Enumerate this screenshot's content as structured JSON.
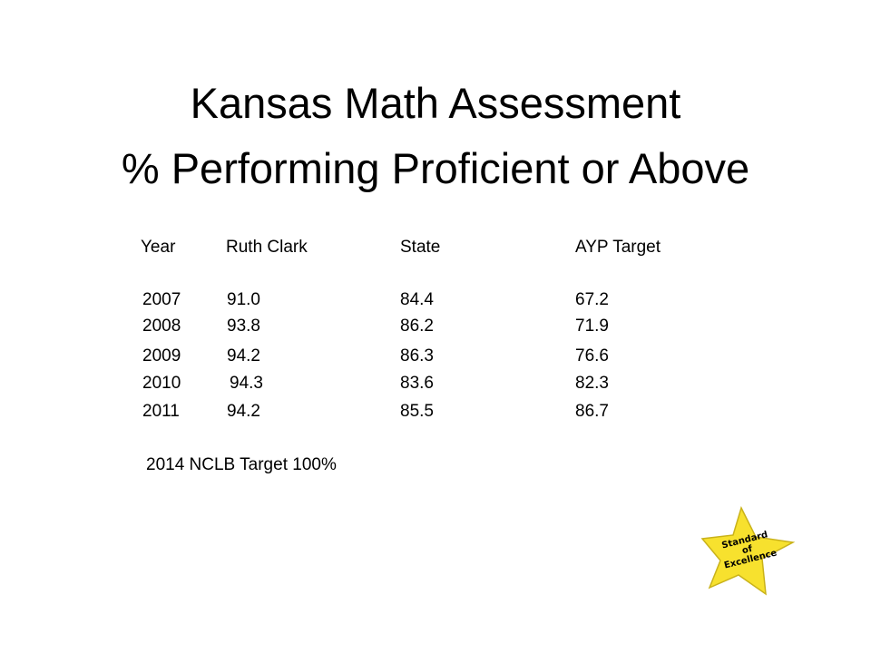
{
  "slide": {
    "title_line1": "Kansas Math Assessment",
    "title_line2": "% Performing Proficient or Above"
  },
  "table": {
    "headers": [
      "Year",
      "Ruth Clark",
      "State",
      "AYP Target"
    ],
    "rows": [
      [
        "2007",
        "91.0",
        "84.4",
        "67.2"
      ],
      [
        "2008",
        "93.8",
        "86.2",
        "71.9"
      ],
      [
        "2009",
        "94.2",
        "86.3",
        "76.6"
      ],
      [
        "2010",
        "94.3",
        "83.6",
        "82.3"
      ],
      [
        "2011",
        "94.2",
        "85.5",
        "86.7"
      ]
    ]
  },
  "footnote": "2014  NCLB Target 100%",
  "badge": {
    "line1": "Standard",
    "line2": "of",
    "line3": "Excellence",
    "fill_color": "#f7e12e",
    "stroke_color": "#c9b21a"
  }
}
